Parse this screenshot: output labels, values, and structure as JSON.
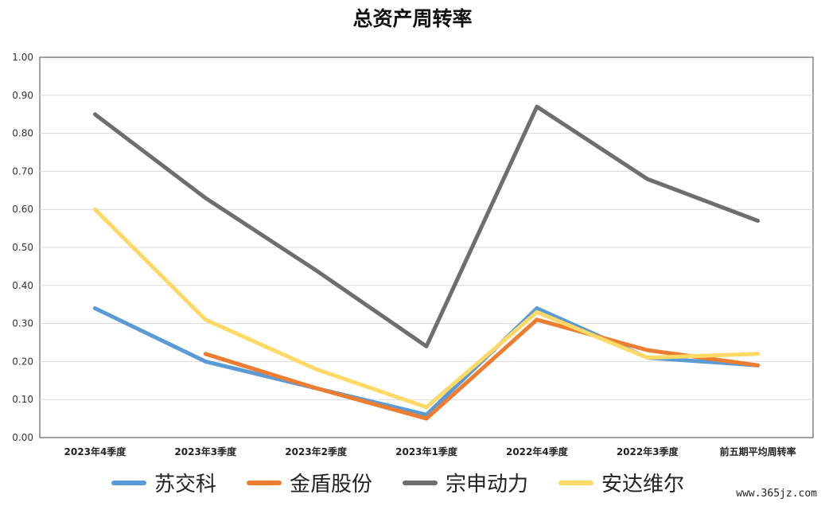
{
  "chart_data": {
    "type": "line",
    "title": "总资产周转率",
    "categories": [
      "2023年4季度",
      "2023年3季度",
      "2023年2季度",
      "2023年1季度",
      "2022年4季度",
      "2022年3季度",
      "前五期平均周转率"
    ],
    "yticks": [
      "0.00",
      "0.10",
      "0.20",
      "0.30",
      "0.40",
      "0.50",
      "0.60",
      "0.70",
      "0.80",
      "0.90",
      "1.00"
    ],
    "ylim": [
      0,
      1.0
    ],
    "grid": true,
    "legend": "bottom",
    "series": [
      {
        "name": "苏交科",
        "color": "#5b9bd5",
        "values": [
          0.34,
          0.2,
          0.13,
          0.06,
          0.34,
          0.21,
          0.19
        ]
      },
      {
        "name": "金盾股份",
        "color": "#ed7d31",
        "values": [
          null,
          0.22,
          0.13,
          0.05,
          0.31,
          0.23,
          0.19
        ]
      },
      {
        "name": "宗申动力",
        "color": "#6f6d6e",
        "values": [
          0.85,
          0.63,
          0.44,
          0.24,
          0.87,
          0.68,
          0.57
        ]
      },
      {
        "name": "安达维尔",
        "color": "#ffd966",
        "values": [
          0.6,
          0.31,
          0.18,
          0.08,
          0.33,
          0.21,
          0.22
        ]
      }
    ]
  },
  "watermark": "www.365jz.com"
}
